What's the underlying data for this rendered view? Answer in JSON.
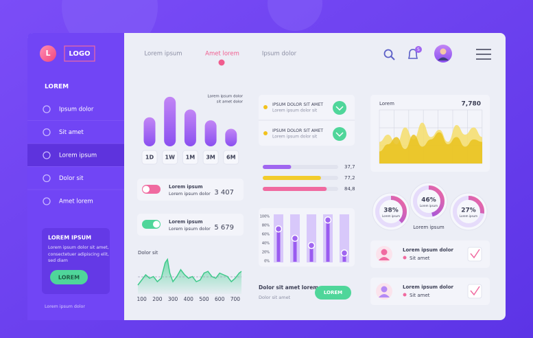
{
  "sidebar": {
    "logo_letter": "L",
    "logo": "LOGO",
    "section": "LOREM",
    "menu": [
      "Ipsum dolor",
      "Sit amet",
      "Lorem ipsum",
      "Dolor sit",
      "Amet lorem"
    ],
    "promo": {
      "title": "LOREM IPSUM",
      "text": [
        "Lorem ipsum dolor sit amet,",
        "consectetuer adipiscing elit,",
        "sed diam"
      ],
      "button": "LOREM"
    },
    "footer": "Lorem ipsum dolor"
  },
  "nav": {
    "tabs": [
      "Lorem ipsum",
      "Amet lorem",
      "Ipsum dolor"
    ],
    "badge": "5"
  },
  "period_chart": {
    "note": [
      "Lorem ipsum dolor",
      "sit amet dolor"
    ],
    "categories": [
      "1D",
      "1W",
      "1M",
      "3M",
      "6M"
    ],
    "values": [
      48,
      82,
      61,
      43,
      29
    ],
    "ylim": [
      0,
      100
    ]
  },
  "toggles": [
    {
      "title": "Lorem ipsum",
      "subtitle": "Lorem ipsum dolor",
      "value": "3 407"
    },
    {
      "title": "Lorem ipsum",
      "subtitle": "Lorem ipsum dolor",
      "value": "5 679"
    }
  ],
  "wave_chart": {
    "title": "Dolor sit",
    "x": [
      75,
      100,
      125,
      150,
      175,
      200,
      225,
      250,
      265,
      280,
      300,
      325,
      350,
      375,
      400,
      425,
      450,
      475,
      500,
      525,
      550,
      575,
      600,
      625,
      650,
      675,
      700,
      725,
      740
    ],
    "values": [
      20,
      35,
      50,
      40,
      45,
      30,
      40,
      85,
      95,
      55,
      30,
      45,
      65,
      50,
      40,
      45,
      30,
      35,
      55,
      60,
      45,
      40,
      55,
      50,
      45,
      30,
      40,
      55,
      60
    ],
    "xlim": [
      75,
      740
    ],
    "ylim": [
      0,
      100
    ],
    "xticks": [
      100,
      200,
      300,
      400,
      500,
      600,
      700
    ]
  },
  "tasks": [
    {
      "title": "IPSUM DOLOR  SIT AMET",
      "subtitle": "Lorem ipsum dolor sit"
    },
    {
      "title": "IPSUM DOLOR  SIT AMET",
      "subtitle": "Lorem ipsum dolor sit"
    }
  ],
  "progress": {
    "values": [
      37.7,
      77.2,
      84.8
    ],
    "value_labels": [
      "37,7",
      "77,2",
      "84,8"
    ],
    "colors": [
      "#a066f0",
      "#f2cc2c",
      "#f06aa0"
    ],
    "xlim": [
      0,
      100
    ]
  },
  "column_chart": {
    "values": [
      72,
      51,
      35,
      92,
      18
    ],
    "ylim": [
      0,
      100
    ],
    "yticks": [
      {
        "value": 0,
        "label": "0%"
      },
      {
        "value": 20,
        "label": "20%"
      },
      {
        "value": 40,
        "label": "40%"
      },
      {
        "value": 60,
        "label": "60%"
      },
      {
        "value": 80,
        "label": "80%"
      },
      {
        "value": 100,
        "label": "100%"
      }
    ]
  },
  "footer_action": {
    "title": "Dolor sit amet lorem",
    "subtitle": "Dolor sit amet",
    "button": "LOREM"
  },
  "area_chart": {
    "title": "Lorem",
    "total": "7,780",
    "ylim": [
      0,
      100
    ],
    "series": [
      {
        "color": "#f5dd6a",
        "values": [
          45,
          60,
          40,
          75,
          50,
          85,
          55,
          70,
          45,
          80,
          60,
          75,
          55
        ]
      },
      {
        "color": "#e9c21d",
        "values": [
          25,
          40,
          55,
          30,
          60,
          35,
          50,
          65,
          40,
          55,
          35,
          50,
          45
        ]
      }
    ]
  },
  "donuts": {
    "values": [
      38,
      46,
      27
    ],
    "value_labels": [
      "38%",
      "46%",
      "27%"
    ],
    "label": "Lorem ipsum",
    "caption": "Lorem ipsum"
  },
  "contacts": [
    {
      "name": "Lorem ipsum dolor",
      "place": "Sit amet"
    },
    {
      "name": "Lorem ipsum dolor",
      "place": "Sit amet"
    }
  ]
}
